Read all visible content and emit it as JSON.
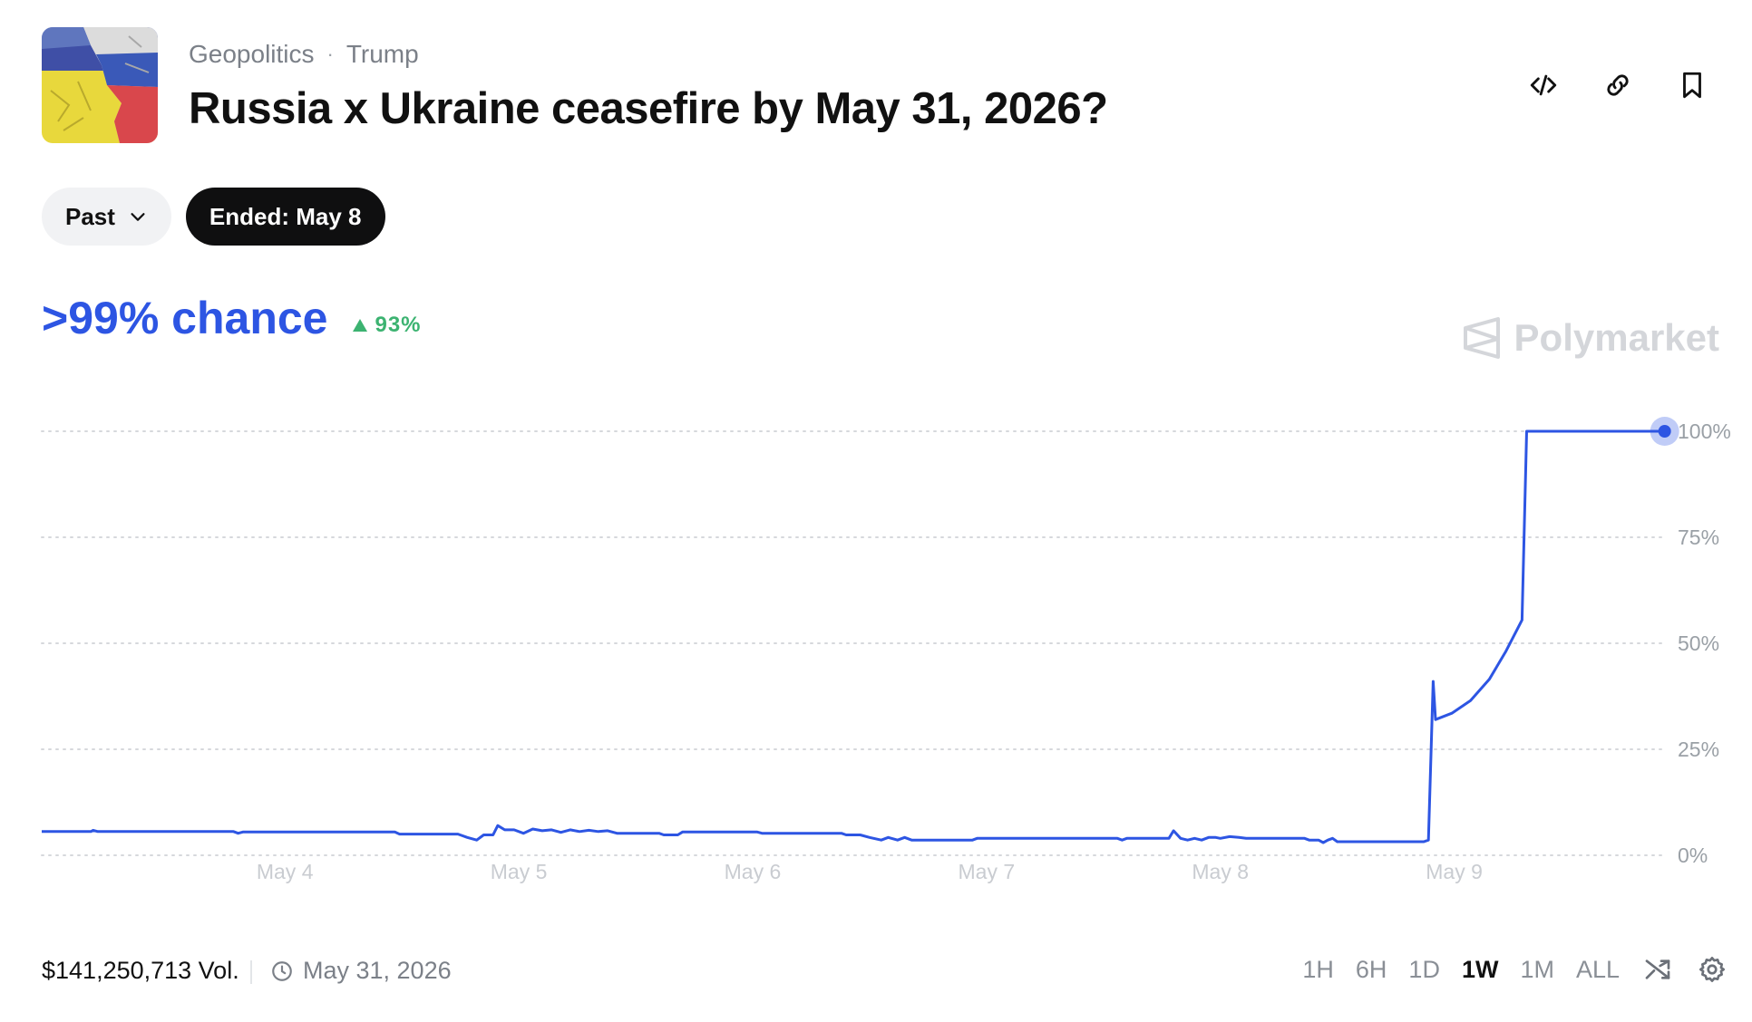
{
  "header": {
    "category": "Geopolitics",
    "tag": "Trump",
    "separator": "·",
    "title": "Russia x Ukraine ceasefire by May 31, 2026?",
    "icons": [
      "embed-code-icon",
      "link-icon",
      "bookmark-icon"
    ]
  },
  "filters": {
    "past_label": "Past",
    "ended_label": "Ended: May 8"
  },
  "summary": {
    "chance": ">99% chance",
    "change": "93%",
    "change_direction": "up"
  },
  "brand": {
    "name": "Polymarket"
  },
  "colors": {
    "accent": "#2d55e3",
    "positive": "#3cb371",
    "grid": "#d6d8dc",
    "tick": "#9aa0a6"
  },
  "chart_data": {
    "type": "line",
    "title": "",
    "xlabel": "",
    "ylabel": "",
    "ylim": [
      0,
      100
    ],
    "yticks": [
      "0%",
      "25%",
      "50%",
      "75%",
      "100%"
    ],
    "xticks": [
      {
        "label": "May 4",
        "day": 4
      },
      {
        "label": "May 5",
        "day": 5
      },
      {
        "label": "May 6",
        "day": 6
      },
      {
        "label": "May 7",
        "day": 7
      },
      {
        "label": "May 8",
        "day": 8
      },
      {
        "label": "May 9",
        "day": 9
      }
    ],
    "xlim": [
      2.96,
      9.94
    ],
    "grid": true,
    "series": [
      {
        "points": [
          [
            2.96,
            5.6
          ],
          [
            3.17,
            5.6
          ],
          [
            3.18,
            5.9
          ],
          [
            3.2,
            5.6
          ],
          [
            3.78,
            5.6
          ],
          [
            3.8,
            5.2
          ],
          [
            3.82,
            5.5
          ],
          [
            4.47,
            5.5
          ],
          [
            4.49,
            5.0
          ],
          [
            4.74,
            5.0
          ],
          [
            4.78,
            4.2
          ],
          [
            4.82,
            3.6
          ],
          [
            4.85,
            4.8
          ],
          [
            4.89,
            4.8
          ],
          [
            4.91,
            7.0
          ],
          [
            4.94,
            6.0
          ],
          [
            4.98,
            6.0
          ],
          [
            5.02,
            5.2
          ],
          [
            5.06,
            6.2
          ],
          [
            5.1,
            5.8
          ],
          [
            5.14,
            6.0
          ],
          [
            5.18,
            5.4
          ],
          [
            5.22,
            6.0
          ],
          [
            5.26,
            5.6
          ],
          [
            5.3,
            5.9
          ],
          [
            5.34,
            5.6
          ],
          [
            5.38,
            5.8
          ],
          [
            5.42,
            5.2
          ],
          [
            5.6,
            5.2
          ],
          [
            5.62,
            4.8
          ],
          [
            5.68,
            4.8
          ],
          [
            5.7,
            5.5
          ],
          [
            6.02,
            5.5
          ],
          [
            6.04,
            5.2
          ],
          [
            6.38,
            5.2
          ],
          [
            6.4,
            4.8
          ],
          [
            6.46,
            4.8
          ],
          [
            6.5,
            4.2
          ],
          [
            6.55,
            3.6
          ],
          [
            6.58,
            4.2
          ],
          [
            6.62,
            3.6
          ],
          [
            6.65,
            4.2
          ],
          [
            6.68,
            3.6
          ],
          [
            6.94,
            3.6
          ],
          [
            6.96,
            4.0
          ],
          [
            7.56,
            4.0
          ],
          [
            7.58,
            3.6
          ],
          [
            7.6,
            4.0
          ],
          [
            7.78,
            4.0
          ],
          [
            7.8,
            5.8
          ],
          [
            7.83,
            4.0
          ],
          [
            7.86,
            3.6
          ],
          [
            7.89,
            4.0
          ],
          [
            7.92,
            3.6
          ],
          [
            7.95,
            4.2
          ],
          [
            7.98,
            4.2
          ],
          [
            8.0,
            4.0
          ],
          [
            8.04,
            4.4
          ],
          [
            8.08,
            4.2
          ],
          [
            8.11,
            4.0
          ],
          [
            8.36,
            4.0
          ],
          [
            8.38,
            3.6
          ],
          [
            8.42,
            3.6
          ],
          [
            8.44,
            3.0
          ],
          [
            8.46,
            3.6
          ],
          [
            8.48,
            4.0
          ],
          [
            8.5,
            3.2
          ],
          [
            8.87,
            3.2
          ],
          [
            8.89,
            3.6
          ],
          [
            8.91,
            41.0
          ],
          [
            8.92,
            32.0
          ],
          [
            8.99,
            33.5
          ],
          [
            9.07,
            36.5
          ],
          [
            9.15,
            41.5
          ],
          [
            9.22,
            48.0
          ],
          [
            9.29,
            55.5
          ],
          [
            9.31,
            100
          ],
          [
            9.9,
            100
          ]
        ]
      }
    ]
  },
  "footer": {
    "volume": "$141,250,713 Vol.",
    "end_date": "May 31, 2026",
    "ranges": [
      "1H",
      "6H",
      "1D",
      "1W",
      "1M",
      "ALL"
    ],
    "active_range": "1W"
  }
}
